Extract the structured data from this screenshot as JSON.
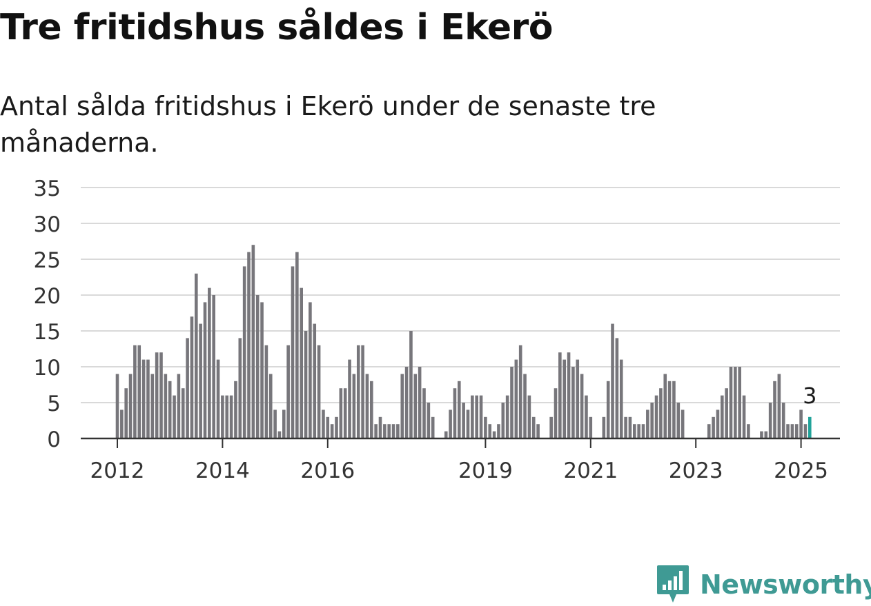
{
  "title": "Tre fritidshus såldes i Ekerö",
  "subtitle": "Antal sålda fritidshus i Ekerö under de senaste tre månaderna.",
  "brand": {
    "name": "Newsworthy",
    "logo_icon": "newsworthy-logo-icon",
    "color": "#3f9a94"
  },
  "chart_data": {
    "type": "bar",
    "title": "Tre fritidshus såldes i Ekerö",
    "subtitle": "Antal sålda fritidshus i Ekerö under de senaste tre månaderna.",
    "xlabel": "",
    "ylabel": "",
    "ylim": [
      0,
      35
    ],
    "yticks": [
      0,
      5,
      10,
      15,
      20,
      25,
      30,
      35
    ],
    "xticks": [
      "2012",
      "2014",
      "2016",
      "2019",
      "2021",
      "2023",
      "2025"
    ],
    "grid": true,
    "bar_color": "#77767b",
    "highlight_color": "#21a39a",
    "annotation": {
      "text": "3",
      "target": "last"
    },
    "start": "2012-01",
    "end": "2025-02",
    "series": [
      {
        "values": [
          9,
          4,
          7,
          9,
          13,
          13,
          11,
          11,
          9,
          12,
          12,
          9,
          8,
          6,
          9,
          7,
          14,
          17,
          23,
          16,
          19,
          21,
          20,
          11,
          6,
          6,
          6,
          8,
          14,
          24,
          26,
          27,
          20,
          19,
          13,
          9,
          4,
          1,
          4,
          13,
          24,
          26,
          21,
          15,
          19,
          16,
          13,
          4,
          3,
          2,
          3,
          7,
          7,
          11,
          9,
          13,
          13,
          9,
          8,
          2,
          3,
          2,
          2,
          2,
          2,
          9,
          10,
          15,
          9,
          10,
          7,
          5,
          3,
          0,
          0,
          1,
          4,
          7,
          8,
          5,
          4,
          6,
          6,
          6,
          3,
          2,
          1,
          2,
          5,
          6,
          10,
          11,
          13,
          9,
          6,
          3,
          2,
          0,
          0,
          3,
          7,
          12,
          11,
          12,
          10,
          11,
          9,
          6,
          3,
          0,
          0,
          3,
          8,
          16,
          14,
          11,
          3,
          3,
          2,
          2,
          2,
          4,
          5,
          6,
          7,
          9,
          8,
          8,
          5,
          4,
          0,
          0,
          0,
          0,
          0,
          2,
          3,
          4,
          6,
          7,
          10,
          10,
          10,
          6,
          2,
          0,
          0,
          1,
          1,
          5,
          8,
          9,
          5,
          2,
          2,
          2,
          4,
          2,
          3
        ]
      }
    ]
  }
}
